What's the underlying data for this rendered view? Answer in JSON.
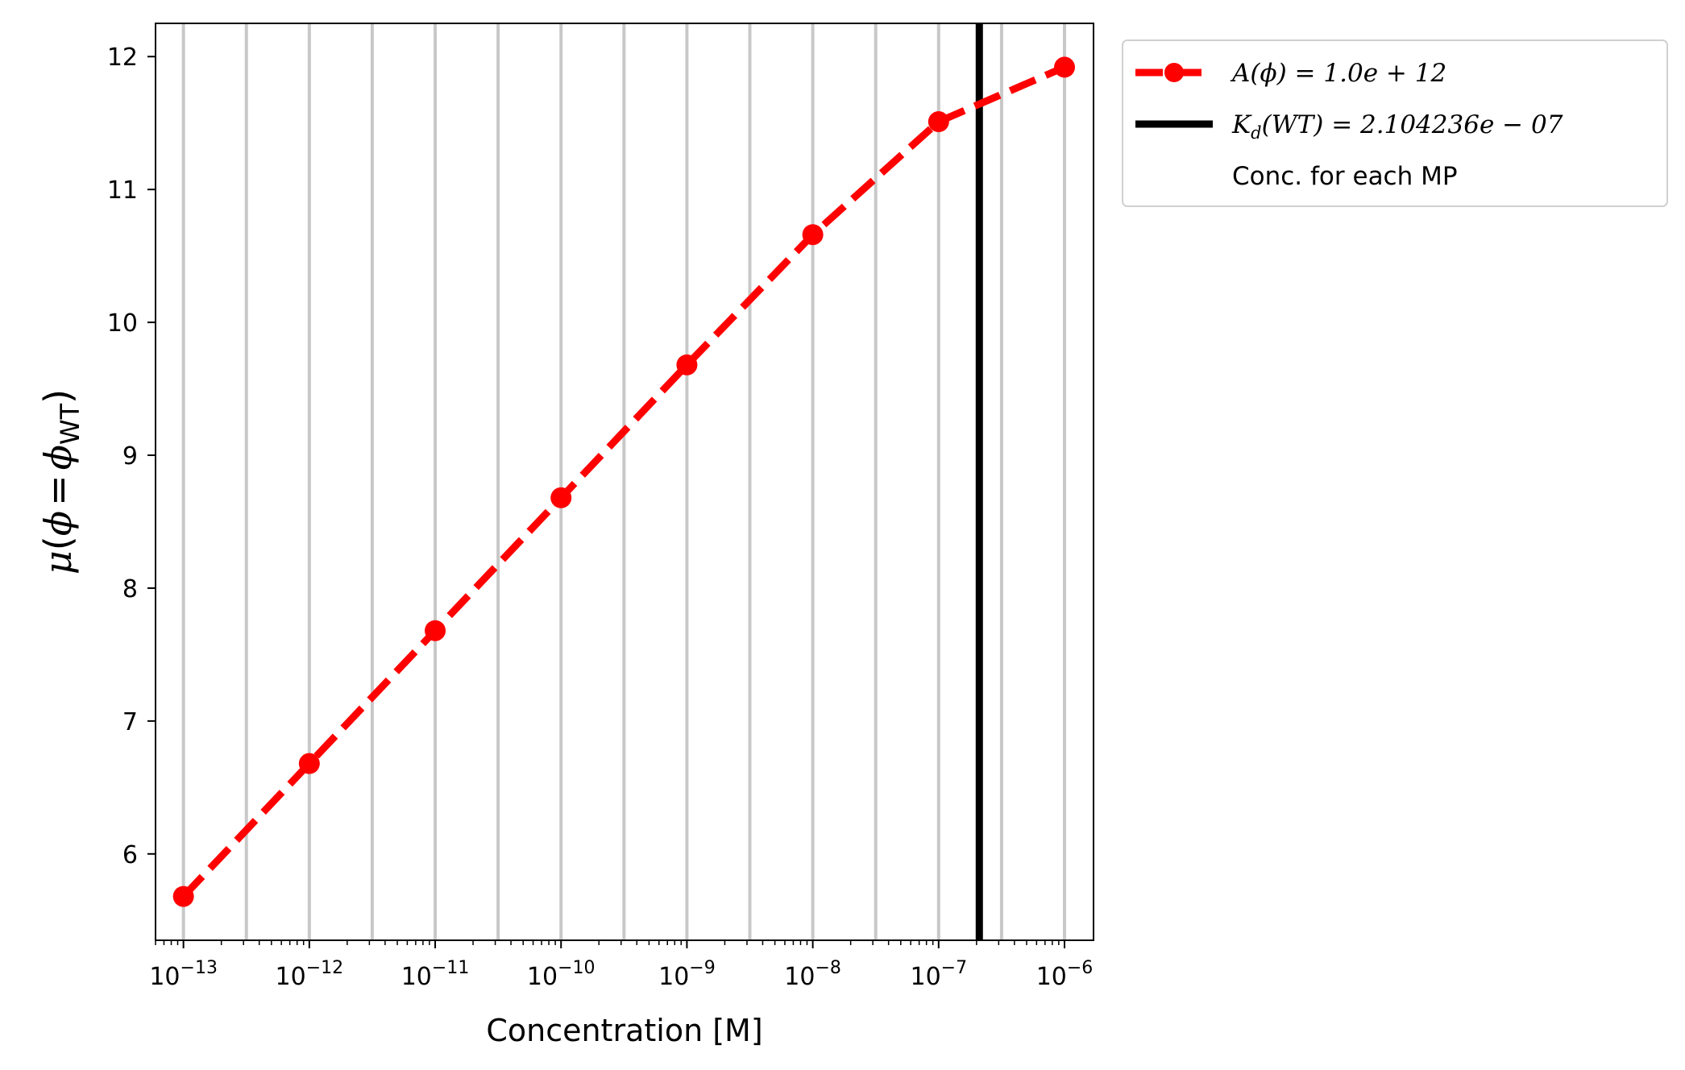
{
  "chart_data": {
    "type": "line",
    "xscale": "log",
    "x_tick_exponents": [
      -13,
      -12,
      -11,
      -10,
      -9,
      -8,
      -7,
      -6
    ],
    "x_tick_base": "10",
    "xlim": [
      6e-14,
      1.7e-06
    ],
    "ylim": [
      5.35,
      12.25
    ],
    "y_ticks": [
      6,
      7,
      8,
      9,
      10,
      11,
      12
    ],
    "xlabel": "Concentration [M]",
    "ylabel": {
      "mu": "μ",
      "phi": "ϕ",
      "equals": "=",
      "sub": "WT"
    },
    "grid": "vertical lines at each MP concentration",
    "mp_concentrations": [
      1e-13,
      3.162e-13,
      1e-12,
      3.162e-12,
      1e-11,
      3.162e-11,
      1e-10,
      3.162e-10,
      1e-09,
      3.162e-09,
      1e-08,
      3.162e-08,
      1e-07,
      3.162e-07,
      1e-06
    ],
    "series": [
      {
        "name": "A(ϕ) = 1.0e + 12",
        "color": "#ff0000",
        "style": "dashed",
        "marker": "circle",
        "x": [
          1e-13,
          1e-12,
          1e-11,
          1e-10,
          1e-09,
          1e-08,
          1e-07,
          1e-06
        ],
        "y": [
          5.68,
          6.68,
          7.68,
          8.68,
          9.68,
          10.66,
          11.51,
          11.92
        ]
      }
    ],
    "kd_line": {
      "label_main": "K",
      "label_sub": "d",
      "label_rest": "(WT) = 2.104236e − 07",
      "x": 2.104236e-07,
      "color": "#000000"
    },
    "legend": {
      "position": "outside upper right",
      "entries": [
        "A(ϕ) = 1.0e + 12",
        "K_d(WT) = 2.104236e − 07",
        "Conc. for each MP"
      ],
      "mp_entry": "Conc. for each MP"
    },
    "colors": {
      "series": "#ff0000",
      "kd": "#000000",
      "grid": "#c8c8c8"
    }
  }
}
